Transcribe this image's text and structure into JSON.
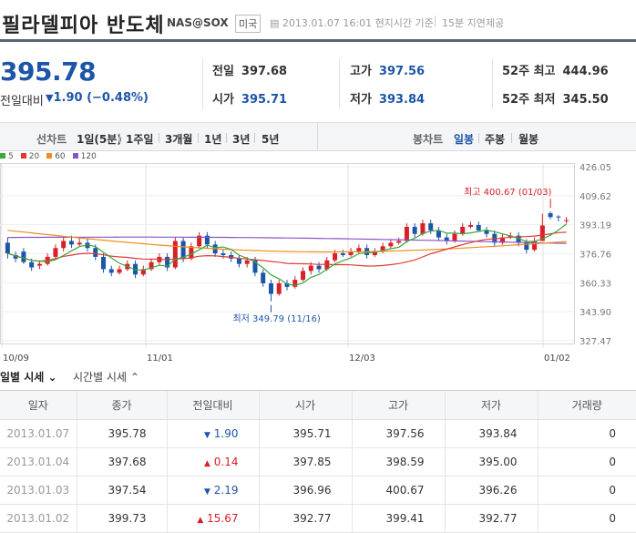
{
  "header": {
    "title": "필라델피아 반도체",
    "code": "NAS@SOX",
    "market_badge": "미국",
    "timestamp": "2013.01.07 16:01 현지시간 기준",
    "delay_note": "15분 지연제공"
  },
  "quote": {
    "price": "395.78",
    "change_label": "전일대비",
    "change_arrow": "▼",
    "change_value": "1.90",
    "change_pct": "(−0.48%)"
  },
  "stats": [
    {
      "label": "전일",
      "value": "397.68",
      "color": "#333333"
    },
    {
      "label": "시가",
      "value": "395.71",
      "color": "#1d56a8"
    },
    {
      "label": "고가",
      "value": "397.56",
      "color": "#1d56a8"
    },
    {
      "label": "저가",
      "value": "393.84",
      "color": "#1d56a8"
    },
    {
      "label": "52주 최고",
      "value": "444.96",
      "color": "#333333"
    },
    {
      "label": "52주 최저",
      "value": "345.50",
      "color": "#333333"
    }
  ],
  "tabs": {
    "line_label": "선차트",
    "line_items": [
      "1일(5분)",
      "1주일",
      "3개월",
      "1년",
      "3년",
      "5년"
    ],
    "candle_label": "봉차트",
    "candle_items": [
      "일봉",
      "주봉",
      "월봉"
    ],
    "candle_selected": "일봉"
  },
  "legend": [
    {
      "name": "5",
      "color": "#39a83e"
    },
    {
      "name": "20",
      "color": "#e03a35"
    },
    {
      "name": "60",
      "color": "#f08c1e"
    },
    {
      "name": "120",
      "color": "#8a55c0"
    }
  ],
  "chart_data": {
    "type": "candlestick",
    "y_ticks": [
      "426.05",
      "409.62",
      "393.19",
      "376.76",
      "360.33",
      "343.90",
      "327.47"
    ],
    "ylim": [
      327.47,
      426.05
    ],
    "x_ticks": [
      "10/09",
      "11/01",
      "12/03",
      "01/02"
    ],
    "annotations": {
      "high": "최고 400.67 (01/03)",
      "low": "최저 349.79 (11/16)"
    },
    "colors": {
      "up": "#d8202a",
      "down": "#1d56a8"
    }
  },
  "subtabs": {
    "daily": "일별 시세",
    "intraday": "시간별 시세"
  },
  "table": {
    "headers": [
      "일자",
      "종가",
      "전일대비",
      "시가",
      "고가",
      "저가",
      "거래량"
    ],
    "rows": [
      {
        "date": "2013.01.07",
        "close": "395.78",
        "dir": "down",
        "arrow": "▼",
        "chg": "1.90",
        "open": "395.71",
        "high": "397.56",
        "low": "393.84",
        "vol": "0"
      },
      {
        "date": "2013.01.04",
        "close": "397.68",
        "dir": "up",
        "arrow": "▲",
        "chg": "0.14",
        "open": "397.85",
        "high": "398.59",
        "low": "395.00",
        "vol": "0"
      },
      {
        "date": "2013.01.03",
        "close": "397.54",
        "dir": "down",
        "arrow": "▼",
        "chg": "2.19",
        "open": "396.96",
        "high": "400.67",
        "low": "396.26",
        "vol": "0"
      },
      {
        "date": "2013.01.02",
        "close": "399.73",
        "dir": "up",
        "arrow": "▲",
        "chg": "15.67",
        "open": "392.77",
        "high": "399.41",
        "low": "392.77",
        "vol": "0"
      }
    ]
  }
}
